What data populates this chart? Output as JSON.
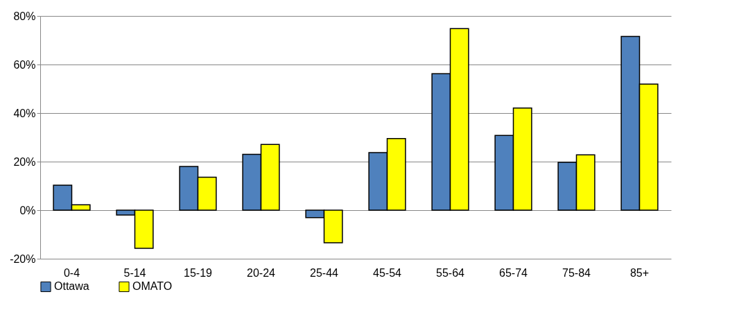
{
  "chart_data": {
    "type": "bar",
    "categories": [
      "0-4",
      "5-14",
      "15-19",
      "20-24",
      "25-44",
      "45-54",
      "55-64",
      "65-74",
      "75-84",
      "85+"
    ],
    "series": [
      {
        "name": "Ottawa",
        "color": "#4f81bd",
        "values": [
          10.3,
          -2,
          18,
          23,
          -3.1,
          23.7,
          56.2,
          30.8,
          19.7,
          71.6
        ]
      },
      {
        "name": "OMATO",
        "color": "#ffff00",
        "values": [
          2.2,
          -15.7,
          13.6,
          27.1,
          -13.4,
          29.5,
          74.8,
          42.1,
          22.8,
          51.9
        ]
      }
    ],
    "ylim": [
      -20,
      80
    ],
    "yticks": [
      {
        "value": -20,
        "label": "-20%"
      },
      {
        "value": 0,
        "label": "0%"
      },
      {
        "value": 20,
        "label": "20%"
      },
      {
        "value": 40,
        "label": "40%"
      },
      {
        "value": 60,
        "label": "60%"
      },
      {
        "value": 80,
        "label": "80%"
      }
    ],
    "grid": "y",
    "legend": "bottom"
  }
}
